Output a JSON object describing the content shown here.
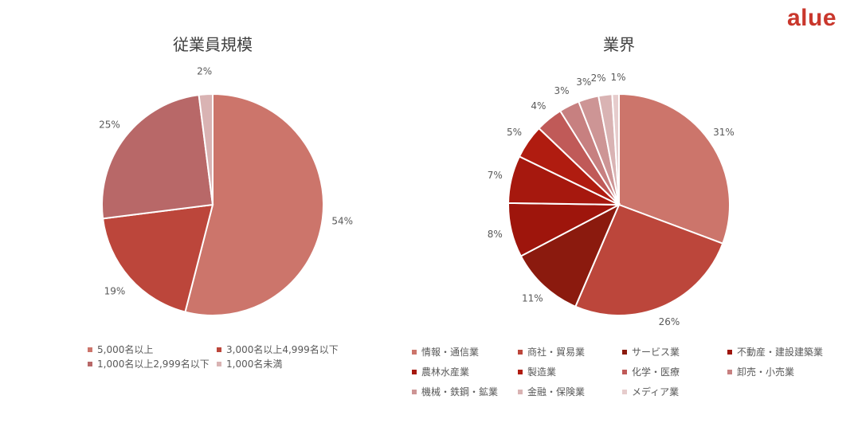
{
  "brand": {
    "logo_text": "alue"
  },
  "chart_data": [
    {
      "type": "pie",
      "title": "従業員規模",
      "categories": [
        "5,000名以上",
        "3,000名以上4,999名以下",
        "1,000名以上2,999名以下",
        "1,000名未満"
      ],
      "values": [
        54,
        19,
        25,
        2
      ],
      "value_labels": [
        "54%",
        "19%",
        "25%",
        "2%"
      ],
      "colors": [
        "#cc756b",
        "#bc463b",
        "#b86868",
        "#d9b3b3"
      ],
      "legend_position": "bottom",
      "start_angle_deg": 0,
      "direction": "clockwise"
    },
    {
      "type": "pie",
      "title": "業界",
      "categories": [
        "情報・通信業",
        "商社・貿易業",
        "サービス業",
        "不動産・建設建築業",
        "農林水産業",
        "製造業",
        "化学・医療",
        "卸売・小売業",
        "機械・鉄鋼・鉱業",
        "金融・保険業",
        "メディア業"
      ],
      "values": [
        31,
        26,
        11,
        8,
        7,
        5,
        4,
        3,
        3,
        2,
        1
      ],
      "value_labels": [
        "31%",
        "26%",
        "11%",
        "8%",
        "7%",
        "5%",
        "4%",
        "3%",
        "3%",
        "2%",
        "1%"
      ],
      "colors": [
        "#cc756b",
        "#bc463b",
        "#8b1a0e",
        "#9e150c",
        "#a6180e",
        "#b01c10",
        "#c05a58",
        "#c78080",
        "#cd9595",
        "#d9b3b3",
        "#e6cccc"
      ],
      "legend_position": "bottom",
      "start_angle_deg": 0,
      "direction": "clockwise"
    }
  ]
}
